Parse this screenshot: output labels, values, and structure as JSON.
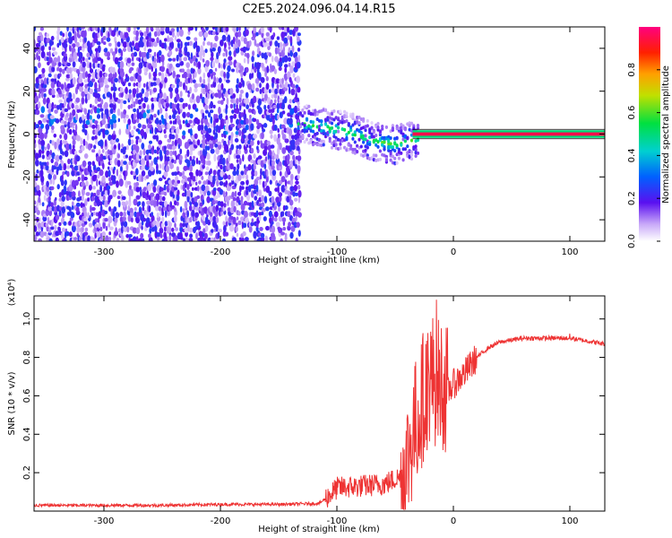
{
  "title": "C2E5.2024.096.04.14.R15",
  "chart_data": [
    {
      "type": "heatmap",
      "xlabel": "Height of straight line (km)",
      "ylabel": "Frequency (Hz)",
      "xlim": [
        -360,
        130
      ],
      "ylim": [
        -50,
        50
      ],
      "xticks": [
        -300,
        -200,
        -100,
        0,
        100
      ],
      "xtick_labels": [
        "-300",
        "-200",
        "-100",
        "0",
        "100"
      ],
      "yticks": [
        -40,
        -20,
        0,
        20,
        40
      ],
      "ytick_labels": [
        "-40",
        "-20",
        "0",
        "20",
        "40"
      ],
      "colorbar": {
        "label": "Normalized spectral amplitude",
        "range": [
          0,
          1
        ],
        "ticks": [
          0,
          0.2,
          0.4,
          0.6,
          0.8
        ],
        "tick_labels": [
          "0.0",
          "0.2",
          "0.4",
          "0.6",
          "0.8"
        ]
      },
      "features": {
        "noise_region_x": [
          -360,
          -133
        ],
        "noise_amplitude": [
          0.05,
          0.25
        ],
        "transition_region_x": [
          -133,
          -30
        ],
        "ridge": [
          {
            "x": -130,
            "f": 5
          },
          {
            "x": -110,
            "f": 3
          },
          {
            "x": -90,
            "f": 1
          },
          {
            "x": -70,
            "f": -3
          },
          {
            "x": -50,
            "f": -5
          },
          {
            "x": -30,
            "f": -2
          },
          {
            "x": -15,
            "f": 0
          },
          {
            "x": 130,
            "f": 0
          }
        ],
        "carrier_x": [
          -35,
          130
        ],
        "carrier_amplitude": 0.95
      }
    },
    {
      "type": "line",
      "xlabel": "Height of straight line (km)",
      "ylabel": "SNR (10 * v/v)",
      "y_multiplier": "(x10⁴)",
      "xlim": [
        -360,
        130
      ],
      "ylim": [
        0,
        1.12
      ],
      "xticks": [
        -300,
        -200,
        -100,
        0,
        100
      ],
      "xtick_labels": [
        "-300",
        "-200",
        "-100",
        "0",
        "100"
      ],
      "yticks": [
        0.2,
        0.4,
        0.6,
        0.8,
        1.0
      ],
      "ytick_labels": [
        "0.2",
        "0.4",
        "0.6",
        "0.8",
        "1.0"
      ],
      "color": "#ee3333",
      "series": [
        {
          "x": [
            -360,
            -300,
            -250,
            -200,
            -150,
            -115,
            -105,
            -100,
            -80,
            -60,
            -45,
            -40,
            -35,
            -30,
            -25,
            -20,
            -15,
            -10,
            -5,
            0,
            10,
            20,
            30,
            40,
            60,
            80,
            100,
            110,
            120,
            130
          ],
          "y": [
            0.03,
            0.03,
            0.03,
            0.035,
            0.035,
            0.04,
            0.09,
            0.12,
            0.13,
            0.14,
            0.18,
            0.25,
            0.4,
            0.5,
            0.62,
            0.7,
            0.68,
            0.67,
            0.62,
            0.66,
            0.72,
            0.8,
            0.85,
            0.88,
            0.9,
            0.9,
            0.9,
            0.89,
            0.88,
            0.87
          ]
        }
      ]
    }
  ]
}
